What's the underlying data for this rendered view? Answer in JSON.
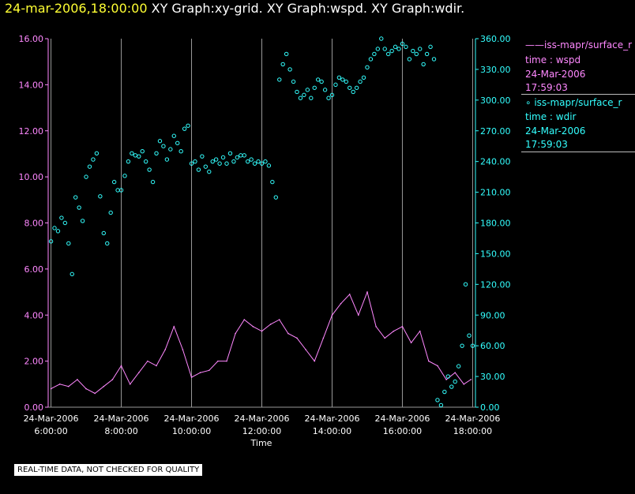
{
  "header": {
    "timestamp": "24-mar-2006,18:00:00",
    "graphs": "XY Graph:xy-grid.  XY Graph:wspd.  XY Graph:wdir."
  },
  "colors": {
    "background": "#000000",
    "wspd": "#ff88ff",
    "wdir": "#33ffff",
    "grid": "#999999",
    "axis_text": "#ffffff",
    "timestamp": "#ffff33"
  },
  "legend": {
    "wspd": {
      "line": "——iss-mapr/surface_r",
      "var": "time : wspd",
      "date": "24-Mar-2006",
      "time": "17:59:03"
    },
    "wdir": {
      "line": "∘  iss-mapr/surface_r",
      "var": "time : wdir",
      "date": "24-Mar-2006",
      "time": "17:59:03"
    }
  },
  "footer": {
    "note": "REAL-TIME DATA, NOT CHECKED FOR QUALITY"
  },
  "chart_data": {
    "type": "line",
    "title": "",
    "xlabel": "Time",
    "x_range_hours": [
      5.9,
      18.1
    ],
    "x_ticks": [
      {
        "hour": 6,
        "date": "24-Mar-2006",
        "time": "6:00:00"
      },
      {
        "hour": 8,
        "date": "24-Mar-2006",
        "time": "8:00:00"
      },
      {
        "hour": 10,
        "date": "24-Mar-2006",
        "time": "10:00:00"
      },
      {
        "hour": 12,
        "date": "24-Mar-2006",
        "time": "12:00:00"
      },
      {
        "hour": 14,
        "date": "24-Mar-2006",
        "time": "14:00:00"
      },
      {
        "hour": 16,
        "date": "24-Mar-2006",
        "time": "16:00:00"
      },
      {
        "hour": 18,
        "date": "24-Mar-2006",
        "time": "18:00:00"
      }
    ],
    "y_left": {
      "name": "wspd",
      "range": [
        0,
        16
      ],
      "ticks": [
        "0.00",
        "2.00",
        "4.00",
        "6.00",
        "8.00",
        "10.00",
        "12.00",
        "14.00",
        "16.00"
      ]
    },
    "y_right": {
      "name": "wdir",
      "range": [
        0,
        360
      ],
      "ticks": [
        "0.00",
        "30.00",
        "60.00",
        "90.00",
        "120.00",
        "150.00",
        "180.00",
        "210.00",
        "240.00",
        "270.00",
        "300.00",
        "330.00",
        "360.00"
      ]
    },
    "series": [
      {
        "name": "wspd",
        "style": "line",
        "axis": "left",
        "x": [
          6.0,
          6.25,
          6.5,
          6.75,
          7.0,
          7.25,
          7.5,
          7.75,
          8.0,
          8.25,
          8.5,
          8.75,
          9.0,
          9.25,
          9.5,
          9.75,
          10.0,
          10.25,
          10.5,
          10.75,
          11.0,
          11.25,
          11.5,
          11.75,
          12.0,
          12.25,
          12.5,
          12.75,
          13.0,
          13.25,
          13.5,
          13.75,
          14.0,
          14.25,
          14.5,
          14.75,
          15.0,
          15.25,
          15.5,
          15.75,
          16.0,
          16.25,
          16.5,
          16.75,
          17.0,
          17.25,
          17.5,
          17.75,
          17.95
        ],
        "values": [
          0.8,
          1.0,
          0.9,
          1.2,
          0.8,
          0.6,
          0.9,
          1.2,
          1.8,
          1.0,
          1.5,
          2.0,
          1.8,
          2.5,
          3.5,
          2.5,
          1.3,
          1.5,
          1.6,
          2.0,
          2.0,
          3.2,
          3.8,
          3.5,
          3.3,
          3.6,
          3.8,
          3.2,
          3.0,
          2.5,
          2.0,
          3.0,
          4.0,
          4.5,
          4.9,
          4.0,
          5.0,
          3.5,
          3.0,
          3.3,
          3.5,
          2.8,
          3.3,
          2.0,
          1.8,
          1.2,
          1.5,
          1.0,
          1.2
        ]
      },
      {
        "name": "wdir",
        "style": "scatter",
        "axis": "right",
        "x": [
          6.0,
          6.1,
          6.2,
          6.3,
          6.4,
          6.5,
          6.6,
          6.7,
          6.8,
          6.9,
          7.0,
          7.1,
          7.2,
          7.3,
          7.4,
          7.5,
          7.6,
          7.7,
          7.8,
          7.9,
          8.0,
          8.1,
          8.2,
          8.3,
          8.4,
          8.5,
          8.6,
          8.7,
          8.8,
          8.9,
          9.0,
          9.1,
          9.2,
          9.3,
          9.4,
          9.5,
          9.6,
          9.7,
          9.8,
          9.9,
          10.0,
          10.1,
          10.2,
          10.3,
          10.4,
          10.5,
          10.6,
          10.7,
          10.8,
          10.9,
          11.0,
          11.1,
          11.2,
          11.3,
          11.4,
          11.5,
          11.6,
          11.7,
          11.8,
          11.9,
          12.0,
          12.1,
          12.2,
          12.3,
          12.4,
          12.5,
          12.6,
          12.7,
          12.8,
          12.9,
          13.0,
          13.1,
          13.2,
          13.3,
          13.4,
          13.5,
          13.6,
          13.7,
          13.8,
          13.9,
          14.0,
          14.1,
          14.2,
          14.3,
          14.4,
          14.5,
          14.6,
          14.7,
          14.8,
          14.9,
          15.0,
          15.1,
          15.2,
          15.3,
          15.4,
          15.5,
          15.6,
          15.7,
          15.8,
          15.9,
          16.0,
          16.1,
          16.2,
          16.3,
          16.4,
          16.5,
          16.6,
          16.7,
          16.8,
          16.9,
          17.0,
          17.1,
          17.2,
          17.3,
          17.4,
          17.5,
          17.6,
          17.7,
          17.8,
          17.9,
          18.0
        ],
        "values": [
          162,
          175,
          172,
          185,
          180,
          160,
          130,
          205,
          195,
          182,
          225,
          235,
          242,
          248,
          206,
          170,
          160,
          190,
          220,
          212,
          212,
          226,
          240,
          248,
          246,
          245,
          250,
          240,
          232,
          220,
          248,
          260,
          255,
          242,
          252,
          265,
          258,
          250,
          272,
          275,
          238,
          240,
          232,
          245,
          235,
          230,
          240,
          242,
          238,
          244,
          238,
          248,
          240,
          244,
          246,
          246,
          240,
          242,
          238,
          240,
          238,
          240,
          236,
          220,
          205,
          320,
          335,
          345,
          330,
          318,
          308,
          302,
          305,
          310,
          302,
          312,
          320,
          318,
          310,
          302,
          305,
          315,
          322,
          320,
          318,
          312,
          308,
          312,
          318,
          322,
          332,
          340,
          345,
          350,
          360,
          350,
          345,
          348,
          352,
          350,
          355,
          352,
          340,
          348,
          345,
          350,
          335,
          345,
          352,
          340,
          7,
          2,
          15,
          30,
          20,
          25,
          40,
          60,
          120,
          70,
          60
        ]
      }
    ]
  }
}
